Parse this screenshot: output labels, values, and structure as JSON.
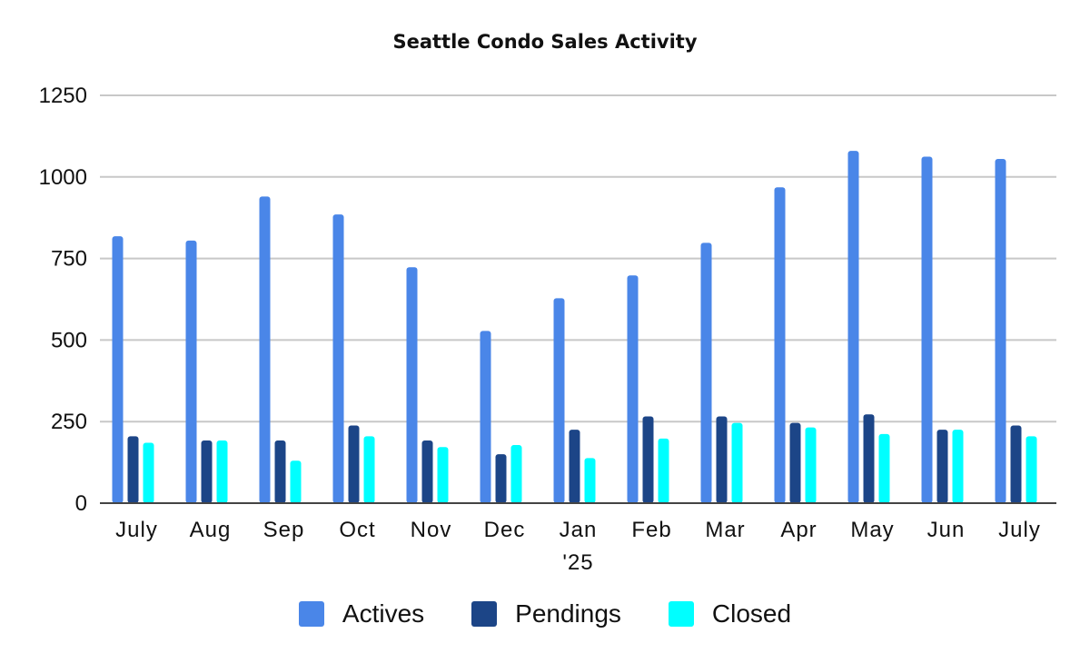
{
  "chart_data": {
    "type": "bar",
    "title": "Seattle Condo Sales Activity",
    "xlabel": "",
    "ylabel": "",
    "categories": [
      [
        "July"
      ],
      [
        "Aug"
      ],
      [
        "Sep"
      ],
      [
        "Oct"
      ],
      [
        "Nov"
      ],
      [
        "Dec"
      ],
      [
        "Jan",
        "'25"
      ],
      [
        "Feb"
      ],
      [
        "Mar"
      ],
      [
        "Apr"
      ],
      [
        "May"
      ],
      [
        "Jun"
      ],
      [
        "July"
      ]
    ],
    "yticks": [
      "0",
      "250",
      "500",
      "750",
      "1000",
      "1250"
    ],
    "ylim": [
      0,
      1250
    ],
    "grid": true,
    "legend_position": "bottom",
    "series": [
      {
        "name": "Actives",
        "color": "#4a86e8",
        "values": [
          818,
          805,
          940,
          885,
          723,
          528,
          628,
          698,
          798,
          968,
          1080,
          1062,
          1055
        ]
      },
      {
        "name": "Pendings",
        "color": "#1c4587",
        "values": [
          205,
          192,
          192,
          238,
          192,
          150,
          225,
          266,
          266,
          246,
          272,
          225,
          238
        ]
      },
      {
        "name": "Closed",
        "color": "#00ffff",
        "values": [
          185,
          192,
          130,
          205,
          172,
          178,
          138,
          198,
          246,
          232,
          212,
          225,
          205
        ]
      }
    ]
  }
}
